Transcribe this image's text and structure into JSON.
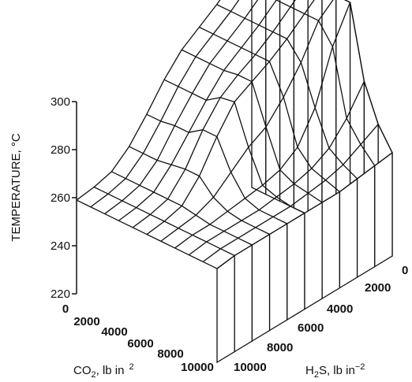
{
  "chart_data": {
    "type": "surface",
    "title": "",
    "zlabel": "TEMPERATURE, °C",
    "xlabel": {
      "text": "CO",
      "sub": "2",
      "unit": ", lb in",
      "sup": "2"
    },
    "ylabel": {
      "text": "H",
      "sub": "2",
      "unit": "S, lb in",
      "sup": "−2"
    },
    "zlim": [
      220,
      300
    ],
    "z_ticks": [
      "300",
      "280",
      "260",
      "240",
      "220"
    ],
    "x_ticks": [
      "0",
      "2000",
      "4000",
      "6000",
      "8000",
      "10000"
    ],
    "y_ticks": [
      "0",
      "2000",
      "4000",
      "6000",
      "8000",
      "10000"
    ],
    "x": [
      0,
      1000,
      2000,
      3000,
      4000,
      5000,
      6000,
      7000,
      8000,
      9000,
      10000
    ],
    "y": [
      0,
      1000,
      2000,
      3000,
      4000,
      5000,
      6000,
      7000,
      8000,
      9000,
      10000
    ],
    "z": [
      [
        259,
        260,
        262,
        268,
        277,
        287,
        295,
        300,
        305,
        311,
        317
      ],
      [
        259,
        260,
        262,
        268,
        277,
        287,
        295,
        300,
        305,
        311,
        317
      ],
      [
        259,
        260,
        262,
        268,
        278,
        287,
        295,
        300,
        305,
        311,
        317
      ],
      [
        259,
        260,
        262,
        269,
        278,
        287,
        295,
        300,
        305,
        311,
        317
      ],
      [
        259,
        260,
        262,
        270,
        282,
        291,
        296,
        300,
        305,
        311,
        317
      ],
      [
        259,
        260,
        262,
        270,
        282,
        292,
        296,
        300,
        305,
        311,
        317
      ],
      [
        259,
        260,
        261,
        264,
        270,
        276,
        280,
        288,
        298,
        311,
        317
      ],
      [
        259,
        260,
        260,
        261,
        262,
        263,
        265,
        270,
        282,
        303,
        317
      ],
      [
        259,
        260,
        260,
        260,
        260,
        261,
        262,
        264,
        268,
        276,
        287
      ],
      [
        259,
        260,
        260,
        260,
        260,
        260,
        261,
        262,
        264,
        268,
        272
      ],
      [
        259,
        260,
        260,
        260,
        260,
        260,
        260,
        260,
        261,
        262,
        263
      ]
    ]
  }
}
